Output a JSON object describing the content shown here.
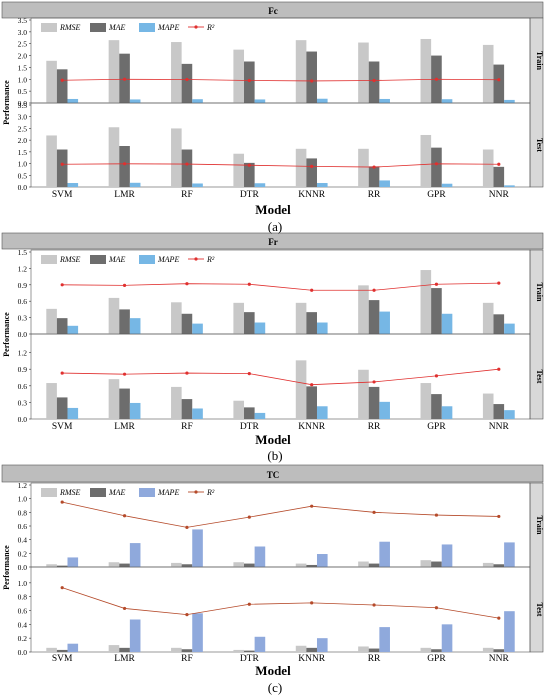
{
  "figure": {
    "legend_labels": [
      "RMSE",
      "MAE",
      "MAPE",
      "R²"
    ],
    "x_axis_title": "Model",
    "y_axis_title": "Performance",
    "models": [
      "SVM",
      "LMR",
      "RF",
      "DTR",
      "KNNR",
      "RR",
      "GPR",
      "NNR"
    ]
  },
  "colors": {
    "rmse": "#c8c8c8",
    "mae": "#6d6d6d",
    "mape_a": "#76b7e5",
    "mape_c": "#8fa9dc",
    "r2_a": "#e0302f",
    "r2_c": "#b54a2a",
    "strip": "#bdbdbd"
  },
  "chart_data": [
    {
      "type": "bar",
      "title": "Fc",
      "caption": "(a)",
      "categories": [
        "SVM",
        "LMR",
        "RF",
        "DTR",
        "KNNR",
        "RR",
        "GPR",
        "NNR"
      ],
      "panels": [
        {
          "name": "Train",
          "ylim": [
            0,
            3.5
          ],
          "yticks": [
            "0.0",
            "0.5",
            "1.0",
            "1.5",
            "2.0",
            "2.5",
            "3.0",
            "3.5"
          ],
          "series": [
            {
              "name": "RMSE",
              "values": [
                1.78,
                2.65,
                2.57,
                2.25,
                2.65,
                2.55,
                2.7,
                2.45
              ]
            },
            {
              "name": "MAE",
              "values": [
                1.42,
                2.08,
                1.65,
                1.75,
                2.17,
                1.75,
                2.0,
                1.62
              ]
            },
            {
              "name": "MAPE",
              "values": [
                0.17,
                0.15,
                0.16,
                0.15,
                0.18,
                0.17,
                0.16,
                0.13
              ]
            },
            {
              "name": "R²",
              "values": [
                0.96,
                1.0,
                0.99,
                0.95,
                0.93,
                0.95,
                1.0,
                0.98
              ]
            }
          ]
        },
        {
          "name": "Test",
          "ylim": [
            0,
            3.5
          ],
          "yticks": [
            "0.0",
            "0.5",
            "1.0",
            "1.5",
            "2.0",
            "2.5",
            "3.0",
            "3.5"
          ],
          "series": [
            {
              "name": "RMSE",
              "values": [
                2.2,
                2.55,
                2.5,
                1.42,
                1.63,
                1.63,
                2.22,
                1.6
              ]
            },
            {
              "name": "MAE",
              "values": [
                1.6,
                1.75,
                1.6,
                1.03,
                1.22,
                0.88,
                1.68,
                0.86
              ]
            },
            {
              "name": "MAPE",
              "values": [
                0.17,
                0.18,
                0.15,
                0.16,
                0.17,
                0.28,
                0.14,
                0.07
              ]
            },
            {
              "name": "R²",
              "values": [
                0.97,
                0.99,
                0.98,
                0.93,
                0.88,
                0.85,
                0.99,
                0.97
              ]
            }
          ]
        }
      ]
    },
    {
      "type": "bar",
      "title": "Fr",
      "caption": "(b)",
      "categories": [
        "SVM",
        "LMR",
        "RF",
        "DTR",
        "KNNR",
        "RR",
        "GPR",
        "NNR"
      ],
      "panels": [
        {
          "name": "Train",
          "ylim": [
            0,
            1.5
          ],
          "yticks": [
            "0.0",
            "0.3",
            "0.6",
            "0.9",
            "1.2",
            "1.5"
          ],
          "series": [
            {
              "name": "RMSE",
              "values": [
                0.46,
                0.66,
                0.58,
                0.57,
                0.57,
                0.89,
                1.17,
                0.57
              ]
            },
            {
              "name": "MAE",
              "values": [
                0.29,
                0.45,
                0.37,
                0.4,
                0.4,
                0.62,
                0.84,
                0.36
              ]
            },
            {
              "name": "MAPE",
              "values": [
                0.15,
                0.29,
                0.19,
                0.21,
                0.21,
                0.41,
                0.37,
                0.19
              ]
            },
            {
              "name": "R²",
              "values": [
                0.9,
                0.89,
                0.92,
                0.91,
                0.8,
                0.8,
                0.91,
                0.93
              ]
            }
          ]
        },
        {
          "name": "Test",
          "ylim": [
            0,
            1.5
          ],
          "yticks": [
            "0.0",
            "0.3",
            "0.6",
            "0.9",
            "1.2"
          ],
          "series": [
            {
              "name": "RMSE",
              "values": [
                0.65,
                0.72,
                0.58,
                0.33,
                1.06,
                0.89,
                0.65,
                0.46
              ]
            },
            {
              "name": "MAE",
              "values": [
                0.39,
                0.55,
                0.36,
                0.21,
                0.59,
                0.58,
                0.45,
                0.27
              ]
            },
            {
              "name": "MAPE",
              "values": [
                0.2,
                0.29,
                0.19,
                0.11,
                0.23,
                0.31,
                0.23,
                0.16
              ]
            },
            {
              "name": "R²",
              "values": [
                0.83,
                0.81,
                0.83,
                0.82,
                0.62,
                0.67,
                0.78,
                0.9
              ]
            }
          ]
        }
      ]
    },
    {
      "type": "bar",
      "title": "TC",
      "caption": "(c)",
      "categories": [
        "SVM",
        "LMR",
        "RF",
        "DTR",
        "KNNR",
        "RR",
        "GPR",
        "NNR"
      ],
      "panels": [
        {
          "name": "Train",
          "ylim": [
            0,
            1.2
          ],
          "yticks": [
            "0.0",
            "0.2",
            "0.4",
            "0.6",
            "0.8",
            "1.0",
            "1.2"
          ],
          "series": [
            {
              "name": "RMSE",
              "values": [
                0.04,
                0.07,
                0.06,
                0.07,
                0.05,
                0.08,
                0.1,
                0.06
              ]
            },
            {
              "name": "MAE",
              "values": [
                0.02,
                0.05,
                0.04,
                0.05,
                0.03,
                0.05,
                0.08,
                0.04
              ]
            },
            {
              "name": "MAPE",
              "values": [
                0.14,
                0.35,
                0.55,
                0.3,
                0.19,
                0.37,
                0.33,
                0.36
              ]
            },
            {
              "name": "R²",
              "values": [
                0.95,
                0.75,
                0.58,
                0.73,
                0.89,
                0.8,
                0.76,
                0.74
              ]
            }
          ]
        },
        {
          "name": "Test",
          "ylim": [
            0,
            1.2
          ],
          "yticks": [
            "0.0",
            "0.2",
            "0.4",
            "0.6",
            "0.8",
            "1.0"
          ],
          "series": [
            {
              "name": "RMSE",
              "values": [
                0.06,
                0.1,
                0.06,
                0.03,
                0.09,
                0.08,
                0.06,
                0.06
              ]
            },
            {
              "name": "MAE",
              "values": [
                0.03,
                0.06,
                0.04,
                0.02,
                0.06,
                0.05,
                0.04,
                0.04
              ]
            },
            {
              "name": "MAPE",
              "values": [
                0.12,
                0.47,
                0.56,
                0.22,
                0.2,
                0.36,
                0.4,
                0.59
              ]
            },
            {
              "name": "R²",
              "values": [
                0.93,
                0.63,
                0.54,
                0.69,
                0.71,
                0.68,
                0.64,
                0.49
              ]
            }
          ]
        }
      ]
    }
  ]
}
